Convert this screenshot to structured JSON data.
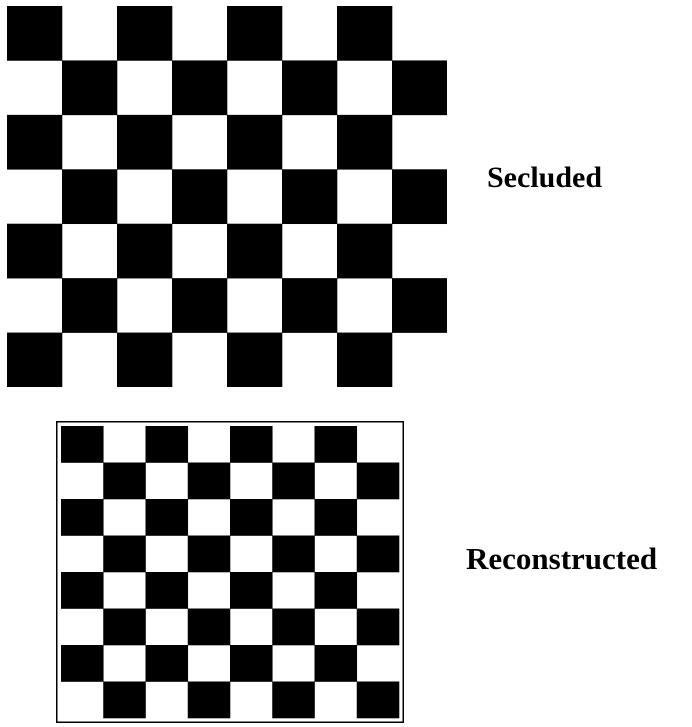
{
  "panels": [
    {
      "label": "Secluded",
      "board": {
        "rows": 7,
        "cols": 8,
        "top_left_dark": true,
        "framed": false
      }
    },
    {
      "label": "Reconstructed",
      "board": {
        "rows": 8,
        "cols": 8,
        "top_left_dark": true,
        "framed": true
      }
    }
  ],
  "colors": {
    "dark": "#000000",
    "light": "#ffffff"
  }
}
